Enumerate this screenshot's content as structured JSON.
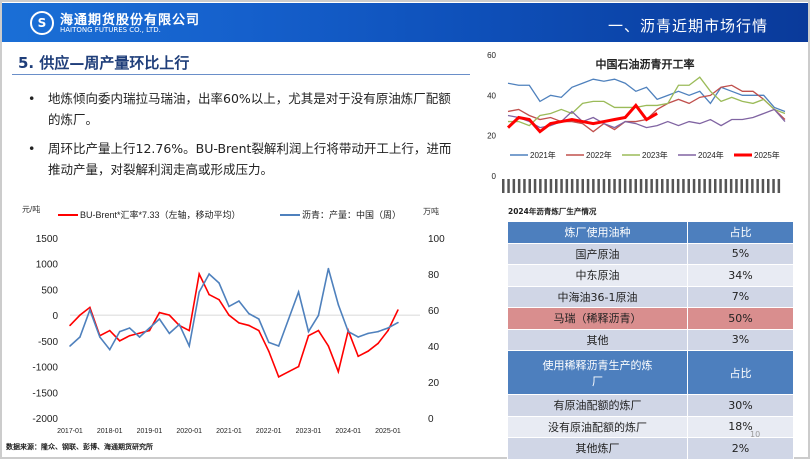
{
  "header": {
    "company_cn": "海通期货股份有限公司",
    "company_en": "HAITONG FUTURES CO., LTD.",
    "section": "一、沥青近期市场行情",
    "logo_glyph": "S"
  },
  "slide": {
    "title": "5. 供应—周产量环比上行",
    "bullets": [
      "地炼倾向委内瑞拉马瑞油，出率60%以上，尤其是对于没有原油炼厂配额的炼厂。",
      "周环比产量上行12.76%。BU-Brent裂解利润上行将带动开工上行，进而推动产量，对裂解利润走高或形成压力。"
    ],
    "source": "数据来源：隆众、钢联、彭博、海通期货研究所",
    "page": "10"
  },
  "table": {
    "caption": "2024年沥青炼厂生产情况",
    "header1": [
      "炼厂使用油种",
      "占比"
    ],
    "rows1": [
      [
        "国产原油",
        "5%"
      ],
      [
        "中东原油",
        "34%"
      ],
      [
        "中海油36-1原油",
        "7%"
      ],
      [
        "马瑞（稀释沥青）",
        "50%"
      ],
      [
        "其他",
        "3%"
      ]
    ],
    "header2": [
      "使用稀释沥青生产的炼厂",
      "占比"
    ],
    "rows2": [
      [
        "有原油配额的炼厂",
        "30%"
      ],
      [
        "没有原油配额的炼厂",
        "18%"
      ],
      [
        "其他炼厂",
        "2%"
      ]
    ]
  },
  "chart_data": [
    {
      "type": "line",
      "title": "",
      "left_unit": "元/吨",
      "right_unit": "万吨",
      "left_ylim": [
        -2000,
        1500
      ],
      "right_ylim": [
        0,
        100
      ],
      "left_ticks": [
        "1500",
        "1000",
        "500",
        "0",
        "-500",
        "-1000",
        "-1500",
        "-2000"
      ],
      "right_ticks": [
        "100",
        "80",
        "60",
        "40",
        "20",
        "0"
      ],
      "x_ticks": [
        "2017-01",
        "2018-01",
        "2019-01",
        "2020-01",
        "2021-01",
        "2022-01",
        "2023-01",
        "2024-01",
        "2025-01"
      ],
      "x": [
        "2017Q1",
        "2017Q2",
        "2017Q3",
        "2017Q4",
        "2018Q1",
        "2018Q2",
        "2018Q3",
        "2018Q4",
        "2019Q1",
        "2019Q2",
        "2019Q3",
        "2019Q4",
        "2020Q1",
        "2020Q2",
        "2020Q3",
        "2020Q4",
        "2021Q1",
        "2021Q2",
        "2021Q3",
        "2021Q4",
        "2022Q1",
        "2022Q2",
        "2022Q3",
        "2022Q4",
        "2023Q1",
        "2023Q2",
        "2023Q3",
        "2023Q4",
        "2024Q1",
        "2024Q2",
        "2024Q3",
        "2024Q4",
        "2025Q1",
        "2025Q2"
      ],
      "series": [
        {
          "name": "BU-Brent*汇率*7.33（左轴，移动平均）",
          "axis": "left",
          "color": "#ff0000",
          "values": [
            -200,
            0,
            150,
            -400,
            -300,
            -500,
            -400,
            -350,
            -300,
            50,
            0,
            -200,
            -300,
            800,
            400,
            300,
            0,
            -150,
            -200,
            -300,
            -700,
            -1200,
            -1100,
            -1000,
            -400,
            -300,
            -600,
            -1100,
            -300,
            -800,
            -700,
            -550,
            -300,
            100
          ]
        },
        {
          "name": "沥青：产量：中国（周）",
          "axis": "right",
          "color": "#4f81bd",
          "values": [
            40,
            45,
            60,
            45,
            38,
            48,
            50,
            45,
            50,
            55,
            47,
            52,
            40,
            70,
            80,
            75,
            62,
            65,
            58,
            55,
            42,
            40,
            55,
            70,
            48,
            57,
            83,
            63,
            48,
            45,
            47,
            48,
            50,
            53
          ]
        }
      ],
      "legend": "top",
      "grid": "zero-line"
    },
    {
      "type": "line",
      "title": "中国石油沥青开工率",
      "ylim": [
        0,
        60
      ],
      "y_ticks": [
        "60",
        "40",
        "20",
        "0"
      ],
      "legend": "bottom",
      "series": [
        {
          "name": "2021年",
          "color": "#4f81bd",
          "values": [
            46,
            45,
            45,
            37,
            40,
            39,
            44,
            46,
            48,
            47,
            48,
            46,
            42,
            44,
            38,
            40,
            42,
            40,
            42,
            36,
            44,
            42,
            40,
            40,
            40,
            34,
            32
          ]
        },
        {
          "name": "2022年",
          "color": "#c0504d",
          "values": [
            32,
            33,
            30,
            28,
            29,
            27,
            27,
            26,
            22,
            26,
            23,
            27,
            27,
            28,
            33,
            36,
            38,
            36,
            39,
            40,
            44,
            45,
            42,
            42,
            38,
            33,
            28
          ]
        },
        {
          "name": "2023年",
          "color": "#9bbb59",
          "values": [
            27,
            27,
            25,
            30,
            31,
            33,
            31,
            36,
            37,
            37,
            34,
            34,
            34,
            35,
            35,
            36,
            45,
            45,
            49,
            42,
            37,
            39,
            37,
            36,
            38,
            33,
            31
          ]
        },
        {
          "name": "2024年",
          "color": "#8064a2",
          "values": [
            30,
            29,
            27,
            24,
            25,
            27,
            32,
            27,
            29,
            26,
            24,
            27,
            26,
            24,
            25,
            27,
            25,
            27,
            26,
            28,
            25,
            28,
            28,
            29,
            31,
            33,
            27
          ]
        },
        {
          "name": "2025年",
          "color": "#ff0000",
          "values": [
            24,
            29,
            28,
            22,
            26,
            27,
            28,
            27,
            26,
            27,
            28,
            29,
            35,
            28,
            31
          ]
        }
      ]
    }
  ]
}
